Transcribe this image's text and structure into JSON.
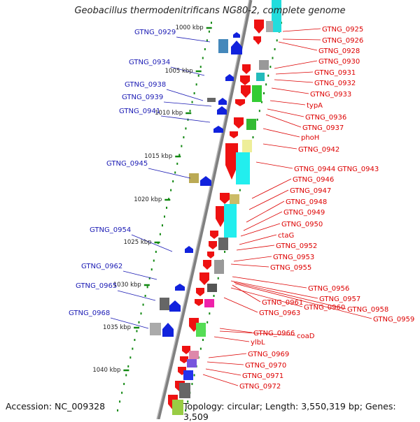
{
  "title": "Geobacillus thermodenitrificans NG80-2, complete genome",
  "footer": {
    "accession": "Accession: NC_009328",
    "topology": "Topology: circular; Length: 3,550,319 bp; Genes: 3,509"
  },
  "colors": {
    "left_labels": "#1a1ab4",
    "right_labels": "#dd0000",
    "backbone": "#808080",
    "ticks": "#118811"
  },
  "scale_labels": [
    "1000 kbp",
    "1005 kbp",
    "1010 kbp",
    "1015 kbp",
    "1020 kbp",
    "1025 kbp",
    "1030 kbp",
    "1035 kbp",
    "1040 kbp"
  ],
  "left_genes": [
    "GTNG_0929",
    "GTNG_0934",
    "GTNG_0938",
    "GTNG_0939",
    "GTNG_0941",
    "GTNG_0945",
    "GTNG_0954",
    "GTNG_0962",
    "GTNG_0965",
    "GTNG_0968"
  ],
  "right_genes": [
    "GTNG_0925",
    "GTNG_0926",
    "GTNG_0928",
    "GTNG_0930",
    "GTNG_0931",
    "GTNG_0932",
    "GTNG_0933",
    "typA",
    "GTNG_0936",
    "GTNG_0937",
    "phoH",
    "GTNG_0942",
    "GTNG_0944",
    "GTNG_0943",
    "GTNG_0946",
    "GTNG_0947",
    "GTNG_0948",
    "GTNG_0949",
    "GTNG_0950",
    "ctaG",
    "GTNG_0952",
    "GTNG_0953",
    "GTNG_0955",
    "GTNG_0956",
    "GTNG_0957",
    "GTNG_0961",
    "GTNG_0960",
    "GTNG_0958",
    "GTNG_0963",
    "GTNG_0959",
    "GTNG_0966",
    "coaD",
    "ylbL",
    "GTNG_0969",
    "GTNG_0970",
    "GTNG_0971",
    "GTNG_0972"
  ]
}
